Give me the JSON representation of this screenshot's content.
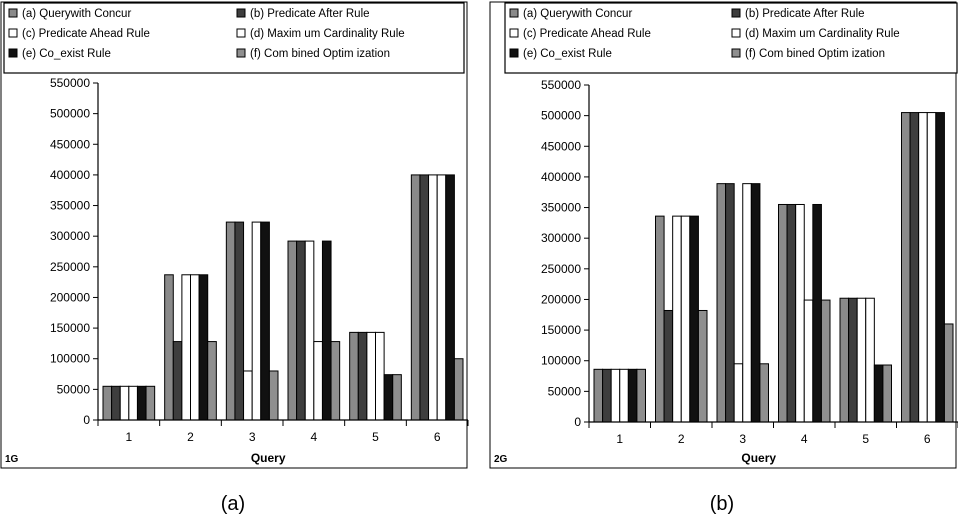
{
  "colors": {
    "a": "#8a8a8a",
    "b": "#3e3e3e",
    "c": "#ffffff",
    "d": "#ffffff",
    "e": "#111111",
    "f": "#8f8f8f"
  },
  "chart_data": [
    {
      "type": "bar",
      "caption": "(a)",
      "corner_label": "1G",
      "xlabel": "Query",
      "ylabel": "",
      "categories": [
        "1",
        "2",
        "3",
        "4",
        "5",
        "6"
      ],
      "ylim": [
        0,
        550000
      ],
      "yticks": [
        "0",
        "50000",
        "100000",
        "150000",
        "200000",
        "250000",
        "300000",
        "350000",
        "400000",
        "450000",
        "500000",
        "550000"
      ],
      "grid": false,
      "legend_position": "top",
      "series": [
        {
          "name": "(a) Querywith Concur",
          "key": "a",
          "values": [
            55000,
            237000,
            323000,
            292000,
            143000,
            400000
          ]
        },
        {
          "name": "(b) Predicate After Rule",
          "key": "b",
          "values": [
            55000,
            128000,
            323000,
            292000,
            143000,
            400000
          ]
        },
        {
          "name": "(c) Predicate Ahead Rule",
          "key": "c",
          "values": [
            55000,
            237000,
            80000,
            292000,
            143000,
            400000
          ]
        },
        {
          "name": "(d) Maxim um Cardinality Rule",
          "key": "d",
          "values": [
            55000,
            237000,
            323000,
            128000,
            143000,
            400000
          ]
        },
        {
          "name": "(e) Co_exist Rule",
          "key": "e",
          "values": [
            55000,
            237000,
            323000,
            292000,
            74000,
            400000
          ]
        },
        {
          "name": "(f) Com bined Optim ization",
          "key": "f",
          "values": [
            55000,
            128000,
            80000,
            128000,
            74000,
            100000
          ]
        }
      ]
    },
    {
      "type": "bar",
      "caption": "(b)",
      "corner_label": "2G",
      "xlabel": "Query",
      "ylabel": "",
      "categories": [
        "1",
        "2",
        "3",
        "4",
        "5",
        "6"
      ],
      "ylim": [
        0,
        550000
      ],
      "yticks": [
        "0",
        "50000",
        "100000",
        "150000",
        "200000",
        "250000",
        "300000",
        "350000",
        "400000",
        "450000",
        "500000",
        "550000"
      ],
      "grid": false,
      "legend_position": "top",
      "series": [
        {
          "name": "(a) Querywith Concur",
          "key": "a",
          "values": [
            86000,
            336000,
            389000,
            355000,
            202000,
            505000
          ]
        },
        {
          "name": "(b) Predicate After Rule",
          "key": "b",
          "values": [
            86000,
            182000,
            389000,
            355000,
            202000,
            505000
          ]
        },
        {
          "name": "(c) Predicate Ahead Rule",
          "key": "c",
          "values": [
            86000,
            336000,
            95000,
            355000,
            202000,
            505000
          ]
        },
        {
          "name": "(d) Maxim um Cardinality Rule",
          "key": "d",
          "values": [
            86000,
            336000,
            389000,
            199000,
            202000,
            505000
          ]
        },
        {
          "name": "(e) Co_exist Rule",
          "key": "e",
          "values": [
            86000,
            336000,
            389000,
            355000,
            93000,
            505000
          ]
        },
        {
          "name": "(f) Com bined Optim ization",
          "key": "f",
          "values": [
            86000,
            182000,
            95000,
            199000,
            93000,
            160000
          ]
        }
      ]
    }
  ]
}
